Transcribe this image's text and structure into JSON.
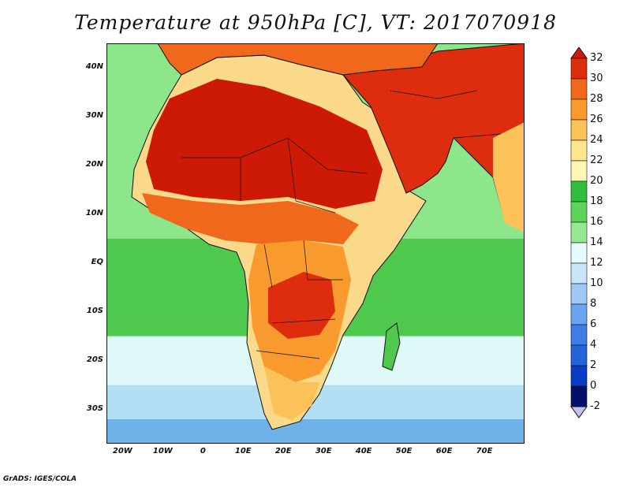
{
  "title": "Temperature at 950hPa [C], VT: 2017070918",
  "credit": "GrADS: IGES/COLA",
  "map": {
    "projection": "latlon",
    "lon_range": [
      -24,
      80
    ],
    "lat_range": [
      -37,
      45
    ],
    "lat_ticks": [
      {
        "value": 40,
        "label": "40N"
      },
      {
        "value": 30,
        "label": "30N"
      },
      {
        "value": 20,
        "label": "20N"
      },
      {
        "value": 10,
        "label": "10N"
      },
      {
        "value": 0,
        "label": "EQ"
      },
      {
        "value": -10,
        "label": "10S"
      },
      {
        "value": -20,
        "label": "20S"
      },
      {
        "value": -30,
        "label": "30S"
      }
    ],
    "lon_ticks": [
      {
        "value": -20,
        "label": "20W"
      },
      {
        "value": -10,
        "label": "10W"
      },
      {
        "value": 0,
        "label": "0"
      },
      {
        "value": 10,
        "label": "10E"
      },
      {
        "value": 20,
        "label": "20E"
      },
      {
        "value": 30,
        "label": "30E"
      },
      {
        "value": 40,
        "label": "40E"
      },
      {
        "value": 50,
        "label": "50E"
      },
      {
        "value": 60,
        "label": "60E"
      },
      {
        "value": 70,
        "label": "70E"
      }
    ],
    "ocean_bands": [
      {
        "lat": 30,
        "color": "#8ee68a"
      },
      {
        "lat": 5,
        "color": "#4ec94e"
      },
      {
        "lat": -15,
        "color": "#dff9f9"
      },
      {
        "lat": -25,
        "color": "#b3dff5"
      },
      {
        "lat": -32,
        "color": "#6fb2ea"
      }
    ]
  },
  "colorbar": {
    "levels": [
      -2,
      0,
      2,
      4,
      6,
      8,
      10,
      12,
      14,
      16,
      18,
      20,
      22,
      24,
      26,
      28,
      30,
      32
    ],
    "colors": [
      "#050f6c",
      "#0a3cc4",
      "#2364d8",
      "#3c7ee6",
      "#6aa4ee",
      "#9fc8f6",
      "#c8e6fa",
      "#e6fbfb",
      "#96e890",
      "#5cd45a",
      "#30be3c",
      "#fdf7b4",
      "#fde690",
      "#fcc25a",
      "#f89a2e",
      "#ef681c",
      "#de2c0e",
      "#cc1a06",
      "#c5bfee"
    ]
  }
}
